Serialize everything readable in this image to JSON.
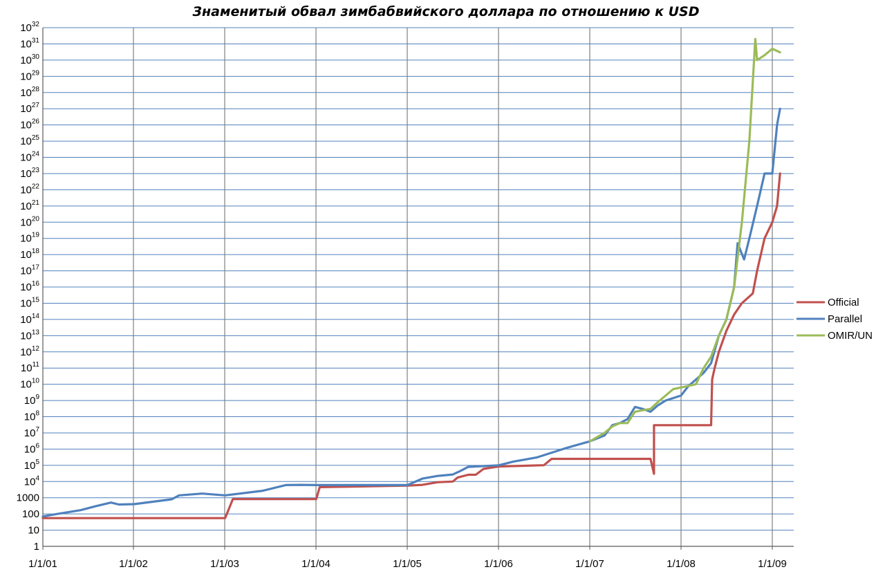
{
  "chart_data": {
    "type": "line",
    "title": "Знаменитый обвал зимбабвийского доллара по отношению к USD",
    "xlabel": "",
    "ylabel": "",
    "y_scale": "log",
    "ylim": [
      1,
      1e+32
    ],
    "x_ticks": [
      "1/1/01",
      "1/1/02",
      "1/1/03",
      "1/1/04",
      "1/1/05",
      "1/1/06",
      "1/1/07",
      "1/1/08",
      "1/1/09"
    ],
    "y_ticks": [
      {
        "base": "1",
        "exp": ""
      },
      {
        "base": "10",
        "exp": ""
      },
      {
        "base": "100",
        "exp": ""
      },
      {
        "base": "1000",
        "exp": ""
      },
      {
        "base": "10",
        "exp": "4"
      },
      {
        "base": "10",
        "exp": "5"
      },
      {
        "base": "10",
        "exp": "6"
      },
      {
        "base": "10",
        "exp": "7"
      },
      {
        "base": "10",
        "exp": "8"
      },
      {
        "base": "10",
        "exp": "9"
      },
      {
        "base": "10",
        "exp": "10"
      },
      {
        "base": "10",
        "exp": "11"
      },
      {
        "base": "10",
        "exp": "12"
      },
      {
        "base": "10",
        "exp": "13"
      },
      {
        "base": "10",
        "exp": "14"
      },
      {
        "base": "10",
        "exp": "15"
      },
      {
        "base": "10",
        "exp": "16"
      },
      {
        "base": "10",
        "exp": "17"
      },
      {
        "base": "10",
        "exp": "18"
      },
      {
        "base": "10",
        "exp": "19"
      },
      {
        "base": "10",
        "exp": "20"
      },
      {
        "base": "10",
        "exp": "21"
      },
      {
        "base": "10",
        "exp": "22"
      },
      {
        "base": "10",
        "exp": "23"
      },
      {
        "base": "10",
        "exp": "24"
      },
      {
        "base": "10",
        "exp": "25"
      },
      {
        "base": "10",
        "exp": "26"
      },
      {
        "base": "10",
        "exp": "27"
      },
      {
        "base": "10",
        "exp": "28"
      },
      {
        "base": "10",
        "exp": "29"
      },
      {
        "base": "10",
        "exp": "30"
      },
      {
        "base": "10",
        "exp": "31"
      },
      {
        "base": "10",
        "exp": "32"
      }
    ],
    "grid": true,
    "legend_position": "right",
    "series": [
      {
        "name": "Official",
        "color": "#c0504d",
        "points": [
          [
            "2001-01-01",
            55
          ],
          [
            "2003-01-01",
            55
          ],
          [
            "2003-02-01",
            824
          ],
          [
            "2004-01-01",
            824
          ],
          [
            "2004-01-15",
            4500
          ],
          [
            "2005-01-01",
            5600
          ],
          [
            "2005-03-01",
            6200
          ],
          [
            "2005-05-01",
            9000
          ],
          [
            "2005-07-01",
            10000
          ],
          [
            "2005-07-20",
            17500
          ],
          [
            "2005-09-01",
            26000
          ],
          [
            "2005-10-01",
            26000
          ],
          [
            "2005-11-01",
            60000
          ],
          [
            "2006-01-01",
            85000
          ],
          [
            "2006-07-01",
            101000
          ],
          [
            "2006-08-01",
            250000
          ],
          [
            "2007-09-01",
            250000
          ],
          [
            "2007-09-15",
            30000
          ],
          [
            "2007-09-15",
            30000000
          ],
          [
            "2008-05-01",
            30000000
          ],
          [
            "2008-05-05",
            20000000000.0
          ],
          [
            "2008-05-15",
            100000000000.0
          ],
          [
            "2008-06-01",
            1000000000000.0
          ],
          [
            "2008-07-01",
            20000000000000.0
          ],
          [
            "2008-08-01",
            200000000000000.0
          ],
          [
            "2008-09-01",
            1000000000000000.0
          ],
          [
            "2008-10-15",
            4000000000000000.0
          ],
          [
            "2008-11-01",
            1e+17
          ],
          [
            "2008-12-01",
            1e+19
          ],
          [
            "2009-01-01",
            1e+20
          ],
          [
            "2009-01-20",
            1e+21
          ],
          [
            "2009-02-01",
            1e+23
          ]
        ]
      },
      {
        "name": "Parallel",
        "color": "#4f81bd",
        "points": [
          [
            "2001-01-01",
            70
          ],
          [
            "2001-03-01",
            100
          ],
          [
            "2001-06-01",
            170
          ],
          [
            "2001-08-01",
            300
          ],
          [
            "2001-10-01",
            500
          ],
          [
            "2001-11-01",
            380
          ],
          [
            "2002-01-01",
            400
          ],
          [
            "2002-06-01",
            800
          ],
          [
            "2002-07-01",
            1400
          ],
          [
            "2002-10-01",
            1800
          ],
          [
            "2003-01-01",
            1400
          ],
          [
            "2003-06-01",
            2700
          ],
          [
            "2003-09-01",
            6000
          ],
          [
            "2003-11-01",
            6200
          ],
          [
            "2004-01-01",
            6000
          ],
          [
            "2005-01-01",
            6000
          ],
          [
            "2005-03-01",
            15000
          ],
          [
            "2005-05-01",
            22000
          ],
          [
            "2005-07-01",
            27000
          ],
          [
            "2005-08-01",
            45000
          ],
          [
            "2005-09-01",
            80000
          ],
          [
            "2006-01-01",
            100000
          ],
          [
            "2006-03-01",
            170000
          ],
          [
            "2006-06-01",
            300000
          ],
          [
            "2006-08-01",
            600000
          ],
          [
            "2006-10-01",
            1200000
          ],
          [
            "2007-01-01",
            3000000
          ],
          [
            "2007-03-01",
            7000000
          ],
          [
            "2007-04-01",
            30000000
          ],
          [
            "2007-05-01",
            40000000
          ],
          [
            "2007-06-01",
            70000000
          ],
          [
            "2007-07-01",
            400000000
          ],
          [
            "2007-08-01",
            300000000
          ],
          [
            "2007-09-01",
            200000000
          ],
          [
            "2007-10-01",
            500000000
          ],
          [
            "2007-11-01",
            1000000000
          ],
          [
            "2008-01-01",
            2000000000
          ],
          [
            "2008-02-01",
            8000000000
          ],
          [
            "2008-04-01",
            50000000000.0
          ],
          [
            "2008-05-01",
            200000000000.0
          ],
          [
            "2008-06-01",
            10000000000000.0
          ],
          [
            "2008-07-01",
            100000000000000.0
          ],
          [
            "2008-08-01",
            1e+16
          ],
          [
            "2008-08-15",
            5e+18
          ],
          [
            "2008-09-10",
            5e+17
          ],
          [
            "2008-10-01",
            1e+19
          ],
          [
            "2008-11-01",
            1e+21
          ],
          [
            "2008-12-01",
            1e+23
          ],
          [
            "2009-01-01",
            1e+23
          ],
          [
            "2009-01-20",
            1e+26
          ],
          [
            "2009-02-01",
            1e+27
          ]
        ]
      },
      {
        "name": "OMIR/UN",
        "color": "#9bbb59",
        "points": [
          [
            "2007-01-01",
            3000000
          ],
          [
            "2007-03-01",
            10000000
          ],
          [
            "2007-04-01",
            25000000
          ],
          [
            "2007-05-01",
            40000000
          ],
          [
            "2007-06-01",
            40000000
          ],
          [
            "2007-07-01",
            200000000
          ],
          [
            "2007-08-01",
            250000000
          ],
          [
            "2007-09-01",
            300000000
          ],
          [
            "2007-10-01",
            800000000
          ],
          [
            "2007-12-01",
            5000000000
          ],
          [
            "2008-02-01",
            8000000000
          ],
          [
            "2008-03-01",
            10000000000.0
          ],
          [
            "2008-04-01",
            100000000000.0
          ],
          [
            "2008-05-01",
            500000000000.0
          ],
          [
            "2008-06-01",
            10000000000000.0
          ],
          [
            "2008-07-01",
            100000000000000.0
          ],
          [
            "2008-08-01",
            1e+16
          ],
          [
            "2008-09-01",
            1e+20
          ],
          [
            "2008-10-01",
            1e+25
          ],
          [
            "2008-10-20",
            1e+30
          ],
          [
            "2008-10-25",
            2e+31
          ],
          [
            "2008-11-01",
            1e+30
          ],
          [
            "2008-12-01",
            2e+30
          ],
          [
            "2009-01-01",
            5e+30
          ],
          [
            "2009-02-01",
            3e+30
          ]
        ]
      }
    ]
  }
}
